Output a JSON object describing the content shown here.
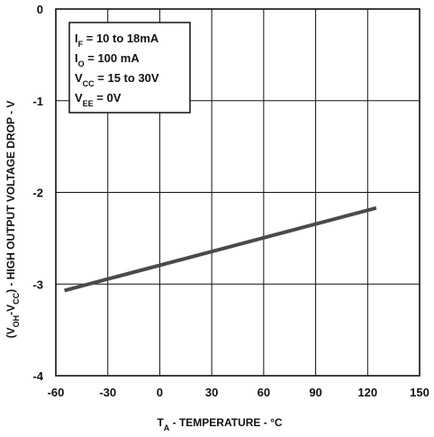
{
  "chart_data": {
    "type": "line",
    "xlabel": {
      "main": "T",
      "sub": "A",
      "rest": " - TEMPERATURE - ",
      "unit": "°C"
    },
    "ylabel": {
      "part1": "(V",
      "sub1": "OH",
      "part2": "-V",
      "sub2": "CC",
      "part3": ") - HIGH OUTPUT VOLTAGE  DROP - V"
    },
    "xlim": [
      -60,
      150
    ],
    "ylim": [
      -4,
      0
    ],
    "x_ticks": [
      "-60",
      "-30",
      "0",
      "30",
      "60",
      "90",
      "120",
      "150"
    ],
    "y_ticks": [
      "0",
      "-1",
      "-2",
      "-3",
      "-4"
    ],
    "grid": true,
    "legend": [
      {
        "main": "I",
        "sub": "F",
        "rest": " = 10 to 18mA"
      },
      {
        "main": "I",
        "sub": "O",
        "rest": " = 100 mA"
      },
      {
        "main": "V",
        "sub": "CC",
        "rest": " = 15 to 30V"
      },
      {
        "main": "V",
        "sub": "EE",
        "rest": " = 0V"
      }
    ],
    "series": [
      {
        "x": [
          -55,
          125
        ],
        "y": [
          -3.07,
          -2.17
        ]
      }
    ],
    "line_color": "#4a4a4a"
  }
}
